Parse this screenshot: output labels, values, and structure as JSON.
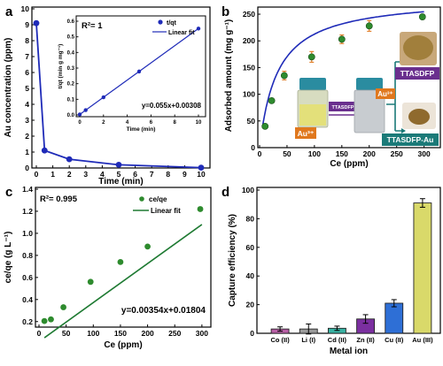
{
  "figure": {
    "panels": [
      {
        "id": "a",
        "letter": "a",
        "xlabel": "Time (min)",
        "ylabel": "Au concentration (ppm)",
        "xticks": [
          "0",
          "1",
          "2",
          "3",
          "4",
          "5",
          "6",
          "7",
          "8",
          "9",
          "10"
        ],
        "yticks": [
          "0",
          "1",
          "2",
          "3",
          "4",
          "5",
          "6",
          "7",
          "8",
          "9",
          "10"
        ],
        "inset": {
          "r2": "R²= 1",
          "legend": [
            "t/qt",
            "Linear fit"
          ],
          "ylabel": "t/qt (min g mg⁻¹)",
          "xlabel": "Time (min)",
          "xticks": [
            "0",
            "2",
            "4",
            "6",
            "8",
            "10"
          ],
          "yticks": [
            "0.0",
            "0.1",
            "0.2",
            "0.3",
            "0.4",
            "0.5",
            "0.6"
          ],
          "equation": "y=0.055x+0.00308"
        }
      },
      {
        "id": "b",
        "letter": "b",
        "xlabel": "Ce (ppm)",
        "ylabel": "Adsorbed amount (mg g⁻¹)",
        "xticks": [
          "0",
          "50",
          "100",
          "150",
          "200",
          "250",
          "300"
        ],
        "yticks": [
          "0",
          "50",
          "100",
          "150",
          "200",
          "250"
        ],
        "photo_labels": {
          "au_ion": "Au³⁺",
          "reagent": "TTASDFP",
          "au_ion_2": "Au³⁺",
          "product_top": "TTASDFP",
          "product_bottom": "TTASDFP-Au"
        }
      },
      {
        "id": "c",
        "letter": "c",
        "xlabel": "Ce (ppm)",
        "ylabel": "ce/qe (g L⁻¹)",
        "xticks": [
          "0",
          "50",
          "100",
          "150",
          "200",
          "250",
          "300"
        ],
        "yticks": [
          "0.2",
          "0.4",
          "0.6",
          "0.8",
          "1.0",
          "1.2",
          "1.4"
        ],
        "r2": "R²= 0.995",
        "legend": [
          "ce/qe",
          "Linear fit"
        ],
        "equation": "y=0.00354x+0.01804"
      },
      {
        "id": "d",
        "letter": "d",
        "xlabel": "Metal ion",
        "ylabel": "Capture efficiency (%)",
        "xticks": [
          "Co (II)",
          "Li (I)",
          "Cd (II)",
          "Zn (II)",
          "Cu (II)",
          "Au (III)"
        ],
        "yticks": [
          "0",
          "20",
          "40",
          "60",
          "80",
          "100"
        ]
      }
    ]
  },
  "colors": {
    "accent_blue": "#1f2bb8",
    "fit_green": "#1e7a32",
    "marker_green": "#2e8b2e",
    "error_orange": "#e0781e",
    "tag_purple": "#6a2f8e",
    "tag_teal": "#1b7a78",
    "bar_colors": [
      "#b85fa6",
      "#9a9a9a",
      "#38b2a3",
      "#7b2fa0",
      "#2e6fd6",
      "#d9d96a"
    ]
  },
  "chart_data": [
    {
      "panel": "a",
      "type": "line",
      "series": [
        {
          "x": [
            0,
            0.5,
            2,
            5,
            10
          ],
          "y": [
            9.1,
            1.1,
            0.55,
            0.2,
            0.02
          ]
        }
      ],
      "xlim": [
        0,
        10
      ],
      "ylim": [
        0,
        10
      ],
      "inset": {
        "type": "scatter",
        "x": [
          0,
          0.5,
          2,
          5,
          10
        ],
        "y": [
          0.003,
          0.031,
          0.113,
          0.278,
          0.553
        ],
        "fit": {
          "slope": 0.055,
          "intercept": 0.00308
        },
        "xlim": [
          0,
          10
        ],
        "ylim": [
          0,
          0.6
        ]
      }
    },
    {
      "panel": "b",
      "type": "scatter",
      "x": [
        10,
        22,
        45,
        95,
        150,
        200,
        297
      ],
      "y": [
        40,
        88,
        135,
        170,
        203,
        228,
        245
      ],
      "err": [
        2,
        4,
        8,
        10,
        8,
        10,
        4
      ],
      "fit_curve": {
        "qmax": 282.5,
        "k": 0.0304
      },
      "xlim": [
        0,
        320
      ],
      "ylim": [
        0,
        260
      ]
    },
    {
      "panel": "c",
      "type": "scatter",
      "x": [
        10,
        22,
        45,
        95,
        150,
        200,
        297
      ],
      "y": [
        0.205,
        0.22,
        0.33,
        0.56,
        0.74,
        0.88,
        1.22
      ],
      "fit": {
        "slope": 0.00354,
        "intercept": 0.01804
      },
      "xlim": [
        0,
        310
      ],
      "ylim": [
        0.15,
        1.4
      ]
    },
    {
      "panel": "d",
      "type": "bar",
      "categories": [
        "Co (II)",
        "Li (I)",
        "Cd (II)",
        "Zn (II)",
        "Cu (II)",
        "Au (III)"
      ],
      "values": [
        3,
        3,
        3.5,
        10,
        21,
        91
      ],
      "err": [
        1.5,
        3.5,
        1.5,
        3,
        2.5,
        3
      ],
      "ylim": [
        0,
        100
      ]
    }
  ]
}
